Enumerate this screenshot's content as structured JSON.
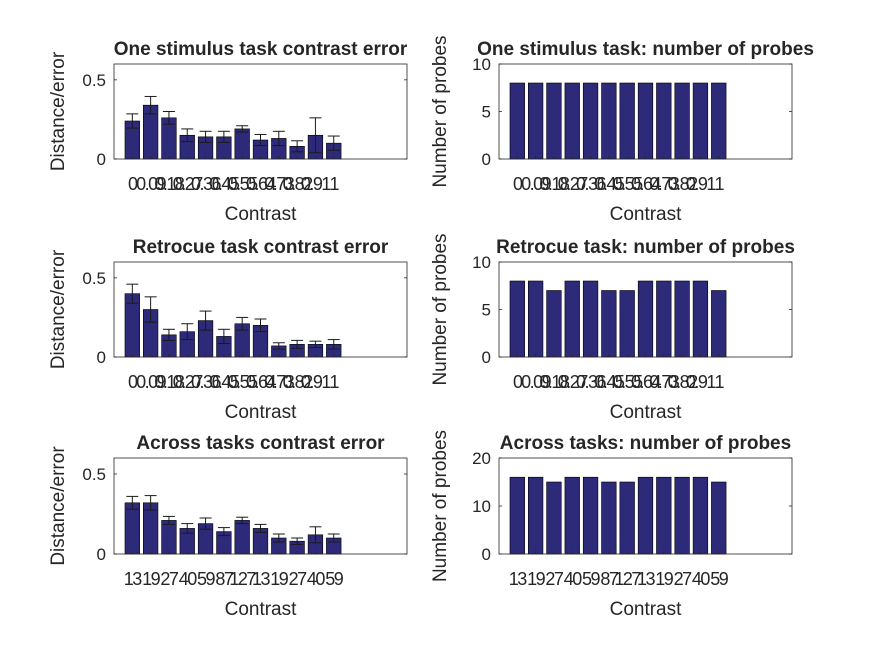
{
  "colors": {
    "bar": "#2e2a7a",
    "axis": "#262626",
    "error": "#1a1a1a"
  },
  "chart_data": [
    {
      "type": "bar",
      "title": "One stimulus task contrast error",
      "xlabel": "Contrast",
      "ylabel": "Distance/error",
      "categories": [
        "0",
        "0.09",
        "0.18",
        "0.27",
        "0.36",
        "0.45",
        "0.55",
        "0.64",
        "0.73",
        "0.82",
        "0.91",
        "1"
      ],
      "values": [
        0.24,
        0.34,
        0.26,
        0.15,
        0.14,
        0.14,
        0.19,
        0.12,
        0.13,
        0.08,
        0.15,
        0.1
      ],
      "errors": [
        0.045,
        0.055,
        0.04,
        0.04,
        0.035,
        0.035,
        0.02,
        0.035,
        0.045,
        0.035,
        0.11,
        0.045
      ],
      "ylim": [
        0,
        0.6
      ],
      "yticks": [
        0,
        0.5
      ],
      "ytick_labels": [
        "0",
        "0.5"
      ],
      "xlim": [
        0,
        16
      ]
    },
    {
      "type": "bar",
      "title": "One stimulus task: number of probes",
      "xlabel": "Contrast",
      "ylabel": "Number of probes",
      "categories": [
        "0",
        "0.09",
        "0.18",
        "0.27",
        "0.36",
        "0.45",
        "0.55",
        "0.64",
        "0.73",
        "0.82",
        "0.91",
        "1"
      ],
      "values": [
        8,
        8,
        8,
        8,
        8,
        8,
        8,
        8,
        8,
        8,
        8,
        8
      ],
      "ylim": [
        0,
        10
      ],
      "yticks": [
        0,
        5,
        10
      ],
      "ytick_labels": [
        "0",
        "5",
        "10"
      ],
      "xlim": [
        0,
        16
      ]
    },
    {
      "type": "bar",
      "title": "Retrocue task contrast error",
      "xlabel": "Contrast",
      "ylabel": "Distance/error",
      "categories": [
        "0",
        "0.09",
        "0.18",
        "0.27",
        "0.36",
        "0.45",
        "0.55",
        "0.64",
        "0.73",
        "0.82",
        "0.91",
        "1"
      ],
      "values": [
        0.4,
        0.3,
        0.14,
        0.16,
        0.23,
        0.13,
        0.21,
        0.2,
        0.07,
        0.08,
        0.08,
        0.08
      ],
      "errors": [
        0.06,
        0.08,
        0.035,
        0.05,
        0.06,
        0.045,
        0.04,
        0.04,
        0.02,
        0.025,
        0.02,
        0.03
      ],
      "ylim": [
        0,
        0.6
      ],
      "yticks": [
        0,
        0.5
      ],
      "ytick_labels": [
        "0",
        "0.5"
      ],
      "xlim": [
        0,
        16
      ]
    },
    {
      "type": "bar",
      "title": "Retrocue task: number of probes",
      "xlabel": "Contrast",
      "ylabel": "Number of probes",
      "categories": [
        "0",
        "0.09",
        "0.18",
        "0.27",
        "0.36",
        "0.45",
        "0.55",
        "0.64",
        "0.73",
        "0.82",
        "0.91",
        "1"
      ],
      "values": [
        8,
        8,
        7,
        8,
        8,
        7,
        7,
        8,
        8,
        8,
        8,
        7
      ],
      "ylim": [
        0,
        10
      ],
      "yticks": [
        0,
        5,
        10
      ],
      "ytick_labels": [
        "0",
        "5",
        "10"
      ],
      "xlim": [
        0,
        16
      ]
    },
    {
      "type": "bar",
      "title": "Across tasks contrast error",
      "xlabel": "Contrast",
      "ylabel": "Distance/error",
      "categories": [
        "13",
        "19",
        "27",
        "40",
        "59",
        "87",
        "127",
        "13",
        "19",
        "27",
        "40",
        "59"
      ],
      "values": [
        0.32,
        0.32,
        0.21,
        0.16,
        0.19,
        0.14,
        0.21,
        0.16,
        0.1,
        0.08,
        0.12,
        0.1
      ],
      "errors": [
        0.04,
        0.045,
        0.025,
        0.03,
        0.035,
        0.025,
        0.02,
        0.025,
        0.025,
        0.02,
        0.05,
        0.025
      ],
      "ylim": [
        0,
        0.6
      ],
      "yticks": [
        0,
        0.5
      ],
      "ytick_labels": [
        "0",
        "0.5"
      ],
      "xlim": [
        0,
        16
      ]
    },
    {
      "type": "bar",
      "title": "Across tasks: number of probes",
      "xlabel": "Contrast",
      "ylabel": "Number of probes",
      "categories": [
        "13",
        "19",
        "27",
        "40",
        "59",
        "87",
        "127",
        "13",
        "19",
        "27",
        "40",
        "59"
      ],
      "values": [
        16,
        16,
        15,
        16,
        16,
        15,
        15,
        16,
        16,
        16,
        16,
        15
      ],
      "ylim": [
        0,
        20
      ],
      "yticks": [
        0,
        10,
        20
      ],
      "ytick_labels": [
        "0",
        "10",
        "20"
      ],
      "xlim": [
        0,
        16
      ]
    }
  ]
}
